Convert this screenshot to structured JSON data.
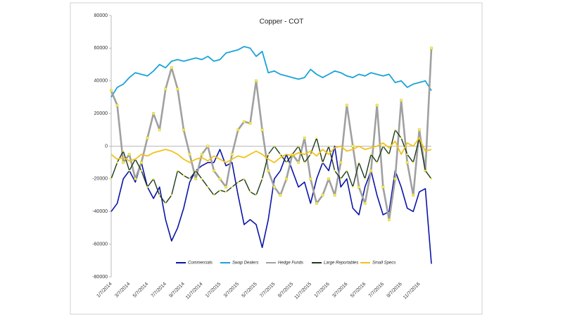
{
  "chart_data": {
    "type": "line",
    "title": "Copper - COT",
    "categories": [
      "1/7/2014",
      null,
      null,
      "3/7/2014",
      null,
      null,
      "5/7/2014",
      null,
      null,
      "7/7/2014",
      null,
      null,
      "9/7/2014",
      null,
      null,
      "11/7/2014",
      null,
      null,
      "1/7/2015",
      null,
      null,
      "3/7/2015",
      null,
      null,
      "5/7/2015",
      null,
      null,
      "7/7/2015",
      null,
      null,
      "9/7/2015",
      null,
      null,
      "11/7/2015",
      null,
      null,
      "1/7/2016",
      null,
      null,
      "3/7/2016",
      null,
      null,
      "5/7/2016",
      null,
      null,
      "7/7/2016",
      null,
      null,
      "9/7/2016",
      null,
      null,
      "11/7/2016",
      null,
      null
    ],
    "ylim": [
      -80000,
      80000
    ],
    "yticks": [
      -80000,
      -60000,
      -40000,
      -20000,
      0,
      20000,
      40000,
      60000,
      80000
    ],
    "series": [
      {
        "name": "Commercials",
        "color": "#0a14a8",
        "values": [
          -40000,
          -35000,
          -20000,
          -15000,
          -22000,
          -10000,
          -25000,
          -32000,
          -25000,
          -45000,
          -58000,
          -50000,
          -38000,
          -22000,
          -15000,
          -12000,
          -10000,
          -10000,
          -2000,
          -12000,
          -10000,
          -30000,
          -48000,
          -45000,
          -48000,
          -62000,
          -45000,
          -20000,
          -15000,
          -5000,
          -15000,
          -25000,
          -22000,
          -35000,
          -20000,
          -10000,
          -15000,
          0,
          -25000,
          -20000,
          -38000,
          -42000,
          -25000,
          -15000,
          -30000,
          -42000,
          -40000,
          -15000,
          -25000,
          -38000,
          -40000,
          -28000,
          -26000,
          -72000
        ]
      },
      {
        "name": "Swap Dealers",
        "color": "#1aa3d9",
        "values": [
          30000,
          36000,
          38000,
          42000,
          45000,
          44000,
          43000,
          46000,
          50000,
          48000,
          52000,
          53000,
          52000,
          53000,
          54000,
          53000,
          55000,
          52000,
          53000,
          57000,
          58000,
          59000,
          61000,
          60000,
          55000,
          58000,
          45000,
          46000,
          44000,
          43000,
          42000,
          41000,
          42000,
          47000,
          44000,
          42000,
          44000,
          46000,
          45000,
          43000,
          42000,
          44000,
          43000,
          45000,
          44000,
          43000,
          44000,
          39000,
          40000,
          36000,
          38000,
          39000,
          40000,
          34000
        ]
      },
      {
        "name": "Hedge Funds",
        "color": "#a0a0a0",
        "values": [
          34000,
          25000,
          -10000,
          -5000,
          -20000,
          -10000,
          5000,
          20000,
          10000,
          35000,
          48000,
          35000,
          10000,
          -5000,
          -20000,
          -5000,
          0,
          -15000,
          -20000,
          -25000,
          -5000,
          10000,
          15000,
          14000,
          40000,
          10000,
          -15000,
          -25000,
          -30000,
          -20000,
          -5000,
          -10000,
          5000,
          -20000,
          -35000,
          -30000,
          -20000,
          -30000,
          -10000,
          25000,
          0,
          -25000,
          -35000,
          -15000,
          25000,
          -25000,
          -45000,
          -20000,
          28000,
          -10000,
          -30000,
          10000,
          -15000,
          60000
        ]
      },
      {
        "name": "Large Reportables",
        "color": "#1d3a1d",
        "values": [
          -20000,
          -10000,
          -3000,
          -15000,
          -8000,
          -15000,
          -25000,
          -20000,
          -30000,
          -35000,
          -30000,
          -15000,
          -18000,
          -20000,
          -15000,
          -20000,
          -25000,
          -30000,
          -27000,
          -28000,
          -25000,
          -22000,
          -20000,
          -28000,
          -30000,
          -20000,
          -5000,
          0,
          -5000,
          -10000,
          -5000,
          0,
          -10000,
          -5000,
          5000,
          -10000,
          0,
          -15000,
          -20000,
          -15000,
          -25000,
          -10000,
          -20000,
          -5000,
          -10000,
          0,
          -5000,
          10000,
          5000,
          -5000,
          -10000,
          5000,
          -15000,
          -20000
        ]
      },
      {
        "name": "Small Specs",
        "color": "#f2c21b",
        "values": [
          -5000,
          -8000,
          -7000,
          -9000,
          -8000,
          -5000,
          -6000,
          -4000,
          -3000,
          -2000,
          -3000,
          -5000,
          -8000,
          -10000,
          -8000,
          -7000,
          -9000,
          -6000,
          -8000,
          -10000,
          -8000,
          -6000,
          -7000,
          -5000,
          -3000,
          -5000,
          -8000,
          -10000,
          -7000,
          -5000,
          -6000,
          -4000,
          -5000,
          -3000,
          -6000,
          -2000,
          -5000,
          -1000,
          0,
          -3000,
          -2000,
          0,
          -2000,
          -1000,
          0,
          2000,
          -1000,
          3000,
          -5000,
          2000,
          0,
          5000,
          -3000,
          -2000
        ]
      }
    ]
  }
}
